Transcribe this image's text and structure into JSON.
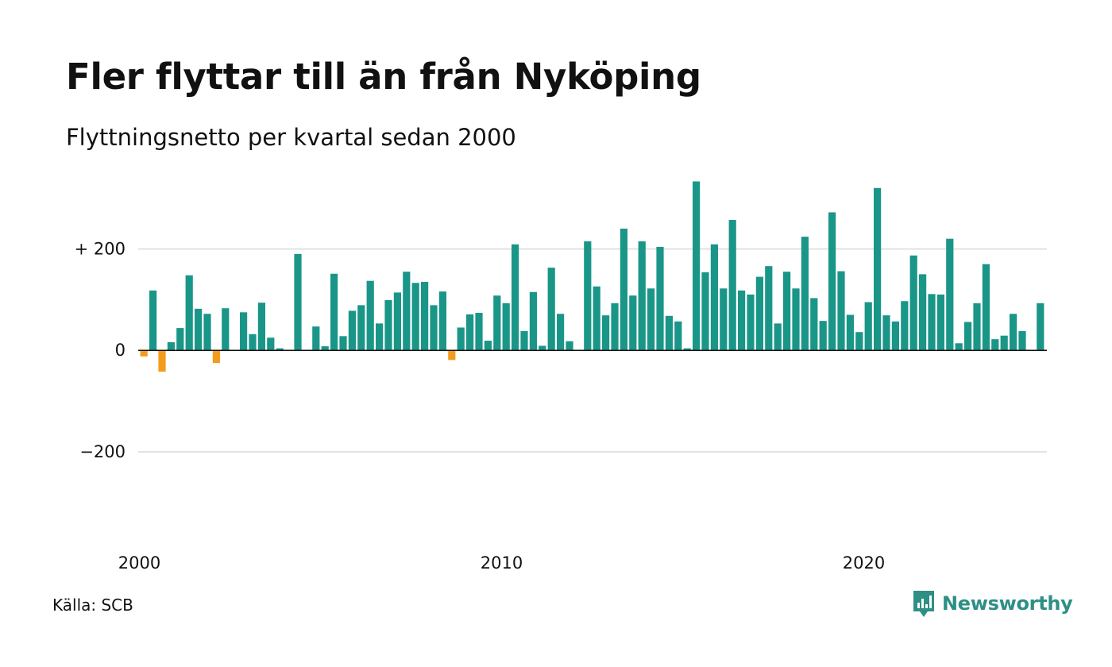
{
  "header": {
    "title": "Fler flyttar till än från Nyköping",
    "subtitle": "Flyttningsnetto per kvartal sedan 2000"
  },
  "footer": {
    "source": "Källa: SCB",
    "brand": "Newsworthy"
  },
  "colors": {
    "positive": "#1a9688",
    "negative": "#f39c1b",
    "grid": "#e2e2e2",
    "axis": "#111111",
    "brand": "#2e8f85"
  },
  "chart_data": {
    "type": "bar",
    "title": "Fler flyttar till än från Nyköping",
    "subtitle": "Flyttningsnetto per kvartal sedan 2000",
    "xlabel": "",
    "ylabel": "",
    "ylim": [
      -380,
      340
    ],
    "xlim": [
      2000,
      2025
    ],
    "yticks": [
      {
        "value": 200,
        "label": "+ 200"
      },
      {
        "value": 0,
        "label": "0"
      },
      {
        "value": -200,
        "label": "−200"
      }
    ],
    "xticks": [
      {
        "value": 2000,
        "label": "2000"
      },
      {
        "value": 2010,
        "label": "2010"
      },
      {
        "value": 2020,
        "label": "2020"
      }
    ],
    "grid": true,
    "legend": "none",
    "series": [
      {
        "quarter_start": "2000-Q1",
        "values": [
          -12,
          118,
          -42,
          16,
          44,
          148,
          82,
          72,
          -25,
          83,
          0,
          75,
          32,
          94,
          25,
          4,
          0,
          190,
          0,
          47,
          8,
          151,
          28,
          78,
          89,
          137,
          53,
          99,
          114,
          155,
          133,
          135,
          89,
          116,
          -19,
          45,
          71,
          74,
          19,
          108,
          93,
          209,
          38,
          115,
          9,
          163,
          72,
          18,
          0,
          215,
          126,
          69,
          93,
          240,
          108,
          215,
          122,
          204,
          68,
          57,
          4,
          333,
          154,
          209,
          122,
          257,
          118,
          110,
          145,
          166,
          53,
          155,
          122,
          224,
          103,
          58,
          272,
          156,
          70,
          36,
          95,
          320,
          69,
          57,
          97,
          187,
          150,
          111,
          110,
          220,
          14,
          56,
          93,
          170,
          22,
          29,
          72,
          38,
          0,
          93
        ]
      }
    ]
  }
}
